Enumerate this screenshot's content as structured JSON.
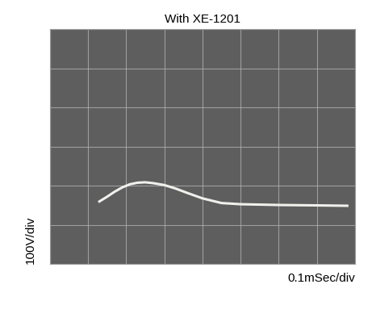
{
  "chart_data": {
    "type": "line",
    "title": "With XE-1201",
    "x_label": "0.1mSec/div",
    "y_label": "100V/div",
    "x": [
      0.13,
      0.15,
      0.17,
      0.19,
      0.21,
      0.23,
      0.25,
      0.27,
      0.3,
      0.33,
      0.36,
      0.4,
      0.45,
      0.5,
      0.6,
      0.7,
      0.78
    ],
    "values": [
      160,
      172,
      185,
      196,
      204,
      208,
      209,
      207,
      202,
      193,
      182,
      168,
      156,
      153,
      151,
      150,
      149
    ],
    "color": "#f0f0ec",
    "xlim": [
      0,
      0.8
    ],
    "xticks": [
      0,
      0.1,
      0.2,
      0.3,
      0.4,
      0.5,
      0.6,
      0.7,
      0.8
    ],
    "ylim": [
      0,
      600
    ],
    "yticks": [
      0,
      100,
      200,
      300,
      400,
      500,
      600
    ],
    "grid": true,
    "tick_labels": false
  }
}
